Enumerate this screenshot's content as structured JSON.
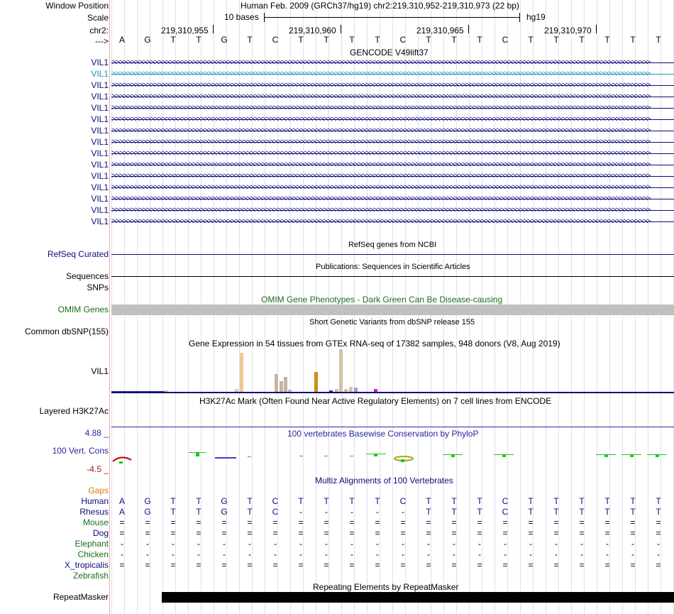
{
  "header": {
    "window_position_label": "Window Position",
    "scale_label": "Scale",
    "chr_label": "chr2:",
    "strand_label": "--->",
    "assembly_text": "Human Feb. 2009 (GRCh37/hg19)   chr2:219,310,952-219,310,973 (22 bp)",
    "scale_text": "10 bases",
    "db_text": "hg19",
    "positions": [
      "219,310,955",
      "219,310,960",
      "219,310,965",
      "219,310,970"
    ]
  },
  "sequence": [
    "A",
    "G",
    "T",
    "T",
    "G",
    "T",
    "C",
    "T",
    "T",
    "T",
    "T",
    "C",
    "T",
    "T",
    "T",
    "C",
    "T",
    "T",
    "T",
    "T",
    "T",
    "T"
  ],
  "gencode": {
    "title": "GENCODE V49lift37",
    "genes": [
      "VIL1",
      "VIL1",
      "VIL1",
      "VIL1",
      "VIL1",
      "VIL1",
      "VIL1",
      "VIL1",
      "VIL1",
      "VIL1",
      "VIL1",
      "VIL1",
      "VIL1",
      "VIL1",
      "VIL1"
    ],
    "highlight_color": "#1898b8",
    "default_color": "#0c0c78"
  },
  "refseq": {
    "label": "RefSeq Curated",
    "title": "RefSeq genes from NCBI"
  },
  "publications": {
    "label": "Sequences",
    "title": "Publications: Sequences in Scientific Articles"
  },
  "snps_label": "SNPs",
  "omim": {
    "label": "OMIM Genes",
    "title": "OMIM Gene Phenotypes - Dark Green Can Be Disease-causing",
    "color": "#1a6e1a"
  },
  "dbsnp": {
    "label": "Common dbSNP(155)",
    "title": "Short Genetic Variants from dbSNP release 155"
  },
  "gtex": {
    "title": "Gene Expression in 54 tissues from GTEx RNA-seq of 17382 samples, 948 donors (V8, Aug 2019)",
    "gene_label": "VIL1"
  },
  "h3k27ac": {
    "label": "Layered H3K27Ac",
    "title": "H3K27Ac Mark (Often Found Near Active Regulatory Elements) on 7 cell lines from ENCODE"
  },
  "phylop": {
    "label": "100 Vert. Cons",
    "title": "100 vertebrates Basewise Conservation by PhyloP",
    "max": "4.88 _",
    "min": "-4.5 _"
  },
  "multiz": {
    "title": "Multiz Alignments of 100 Vertebrates",
    "gaps_label": "Gaps",
    "species": [
      {
        "name": "Human",
        "color": "#0c0c78",
        "row": [
          "A",
          "G",
          "T",
          "T",
          "G",
          "T",
          "C",
          "T",
          "T",
          "T",
          "T",
          "C",
          "T",
          "T",
          "T",
          "C",
          "T",
          "T",
          "T",
          "T",
          "T",
          "T"
        ]
      },
      {
        "name": "Rhesus",
        "color": "#0c0c78",
        "row": [
          "A",
          "G",
          "T",
          "T",
          "G",
          "T",
          "C",
          "-",
          "-",
          "-",
          "-",
          "-",
          "T",
          "T",
          "T",
          "C",
          "T",
          "T",
          "T",
          "T",
          "T",
          "T"
        ]
      },
      {
        "name": "Mouse",
        "color": "#1a6e1a",
        "row": [
          "=",
          "=",
          "=",
          "=",
          "=",
          "=",
          "=",
          "=",
          "=",
          "=",
          "=",
          "=",
          "=",
          "=",
          "=",
          "=",
          "=",
          "=",
          "=",
          "=",
          "=",
          "="
        ]
      },
      {
        "name": "Dog",
        "color": "#0c0c78",
        "row": [
          "=",
          "=",
          "=",
          "=",
          "=",
          "=",
          "=",
          "=",
          "=",
          "=",
          "=",
          "=",
          "=",
          "=",
          "=",
          "=",
          "=",
          "=",
          "=",
          "=",
          "=",
          "="
        ]
      },
      {
        "name": "Elephant",
        "color": "#1a6e1a",
        "row": [
          "-",
          "-",
          "-",
          "-",
          "-",
          "-",
          "-",
          "-",
          "-",
          "-",
          "-",
          "-",
          "-",
          "-",
          "-",
          "-",
          "-",
          "-",
          "-",
          "-",
          "-",
          "-"
        ]
      },
      {
        "name": "Chicken",
        "color": "#1a6e1a",
        "row": [
          "-",
          "-",
          "-",
          "-",
          "-",
          "-",
          "-",
          "-",
          "-",
          "-",
          "-",
          "-",
          "-",
          "-",
          "-",
          "-",
          "-",
          "-",
          "-",
          "-",
          "-",
          "-"
        ]
      },
      {
        "name": "X_tropicalis",
        "color": "#0c0c78",
        "row": [
          "=",
          "=",
          "=",
          "=",
          "=",
          "=",
          "=",
          "=",
          "=",
          "=",
          "=",
          "=",
          "=",
          "=",
          "=",
          "=",
          "=",
          "=",
          "=",
          "=",
          "=",
          "="
        ]
      },
      {
        "name": "Zebrafish",
        "color": "#1a6e1a",
        "row": []
      }
    ]
  },
  "repeatmasker": {
    "label": "RepeatMasker",
    "title": "Repeating Elements by RepeatMasker"
  },
  "colors": {
    "navy": "#0c0c78",
    "green": "#1a6e1a",
    "omim_gray": "#c0c0c0",
    "phylop_blue": "#2828a0",
    "phylop_red": "#b01414",
    "gaps_orange": "#d07c00",
    "cons_green": "#1cc81c"
  }
}
